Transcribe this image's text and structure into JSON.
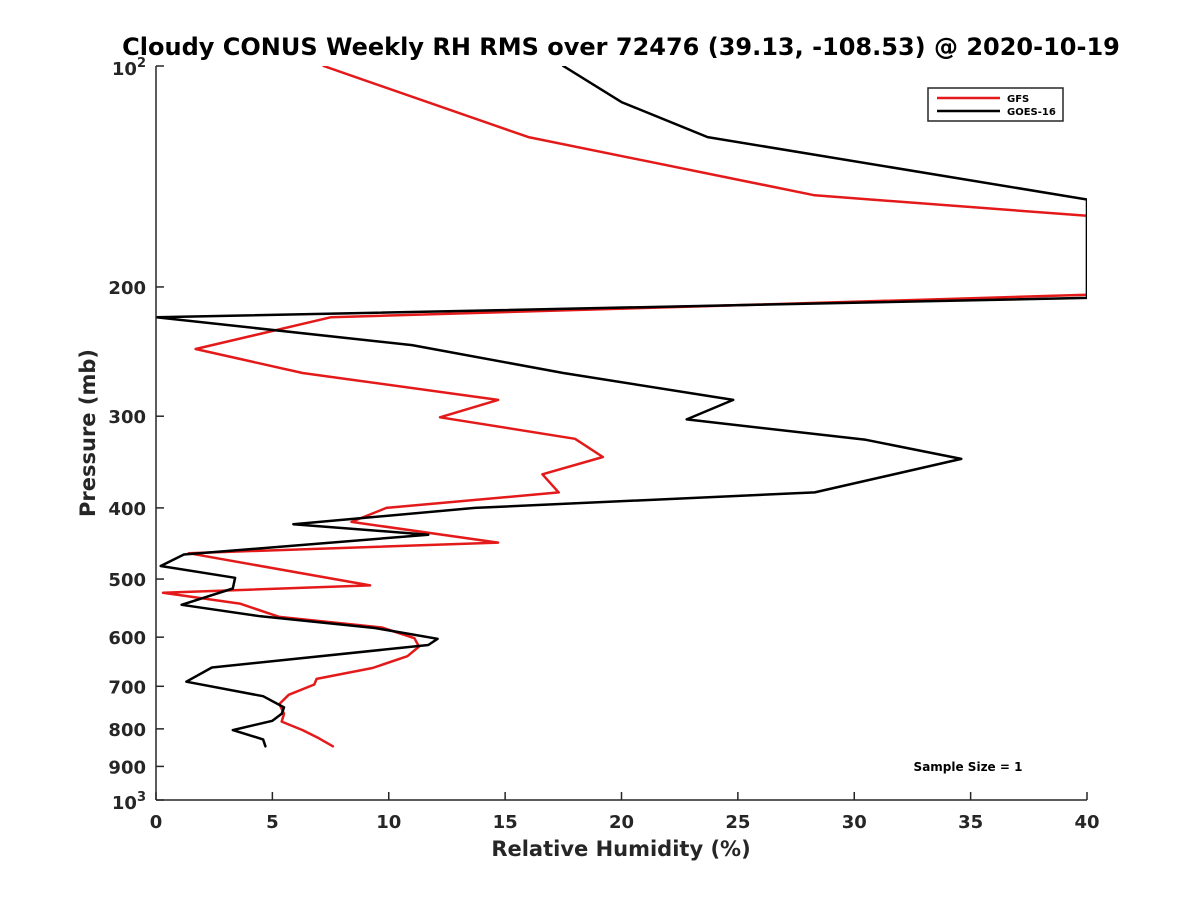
{
  "chart_data": {
    "type": "line",
    "title": "Cloudy CONUS Weekly RH RMS over 72476 (39.13, -108.53) @ 2020-10-19",
    "xlabel": "Relative Humidity (%)",
    "ylabel": "Pressure (mb)",
    "xlim": [
      0,
      40
    ],
    "ylim": [
      100,
      1000
    ],
    "y_scale": "log",
    "y_reversed": true,
    "grid": false,
    "legend_position": "top-right",
    "x_ticks": [
      0,
      5,
      10,
      15,
      20,
      25,
      30,
      35,
      40
    ],
    "x_tick_labels": [
      "0",
      "5",
      "10",
      "15",
      "20",
      "25",
      "30",
      "35",
      "40"
    ],
    "y_ticks": [
      200,
      300,
      400,
      500,
      600,
      700,
      800,
      900
    ],
    "y_tick_labels": [
      "200",
      "300",
      "400",
      "500",
      "600",
      "700",
      "800",
      "900"
    ],
    "y_decade_labels": [
      {
        "value": 100,
        "base": "10",
        "exp": "2"
      },
      {
        "value": 1000,
        "base": "10",
        "exp": "3"
      }
    ],
    "series": [
      {
        "name": "GFS",
        "color": "#e41a1a",
        "points": [
          [
            7.2,
            100
          ],
          [
            16.0,
            125
          ],
          [
            28.3,
            150
          ],
          [
            40.0,
            160
          ],
          [
            40.0,
            205
          ],
          [
            7.5,
            220
          ],
          [
            1.7,
            243
          ],
          [
            6.3,
            262
          ],
          [
            14.7,
            285
          ],
          [
            12.2,
            301
          ],
          [
            18.0,
            322
          ],
          [
            19.2,
            341
          ],
          [
            16.6,
            360
          ],
          [
            17.3,
            381
          ],
          [
            9.9,
            400
          ],
          [
            8.4,
            418
          ],
          [
            14.7,
            446
          ],
          [
            1.4,
            461
          ],
          [
            9.2,
            510
          ],
          [
            0.3,
            522
          ],
          [
            3.6,
            540
          ],
          [
            5.3,
            563
          ],
          [
            9.7,
            582
          ],
          [
            11.1,
            602
          ],
          [
            11.3,
            618
          ],
          [
            10.8,
            637
          ],
          [
            9.3,
            661
          ],
          [
            6.9,
            684
          ],
          [
            6.8,
            696
          ],
          [
            5.7,
            719
          ],
          [
            5.3,
            740
          ],
          [
            5.5,
            763
          ],
          [
            5.4,
            782
          ],
          [
            6.3,
            803
          ],
          [
            7.0,
            824
          ],
          [
            7.6,
            845
          ]
        ]
      },
      {
        "name": "GOES-16",
        "color": "#000000",
        "points": [
          [
            17.5,
            100
          ],
          [
            20.0,
            112
          ],
          [
            23.7,
            125
          ],
          [
            40.0,
            152
          ],
          [
            40.0,
            207
          ],
          [
            0.0,
            220
          ],
          [
            11.0,
            240
          ],
          [
            17.5,
            262
          ],
          [
            24.8,
            285
          ],
          [
            22.8,
            303
          ],
          [
            30.5,
            323
          ],
          [
            34.6,
            343
          ],
          [
            28.3,
            381
          ],
          [
            13.7,
            400
          ],
          [
            5.9,
            421
          ],
          [
            11.7,
            435
          ],
          [
            1.2,
            463
          ],
          [
            0.2,
            480
          ],
          [
            3.4,
            498
          ],
          [
            3.3,
            515
          ],
          [
            1.1,
            542
          ],
          [
            4.5,
            562
          ],
          [
            9.4,
            583
          ],
          [
            12.1,
            603
          ],
          [
            11.7,
            615
          ],
          [
            2.4,
            660
          ],
          [
            1.3,
            690
          ],
          [
            4.6,
            722
          ],
          [
            5.5,
            748
          ],
          [
            5.4,
            763
          ],
          [
            5.0,
            780
          ],
          [
            3.3,
            803
          ],
          [
            4.6,
            827
          ],
          [
            4.7,
            845
          ]
        ]
      }
    ],
    "annotations": [
      {
        "text": "Sample Size = 1",
        "x": 35,
        "y": 900
      }
    ]
  }
}
